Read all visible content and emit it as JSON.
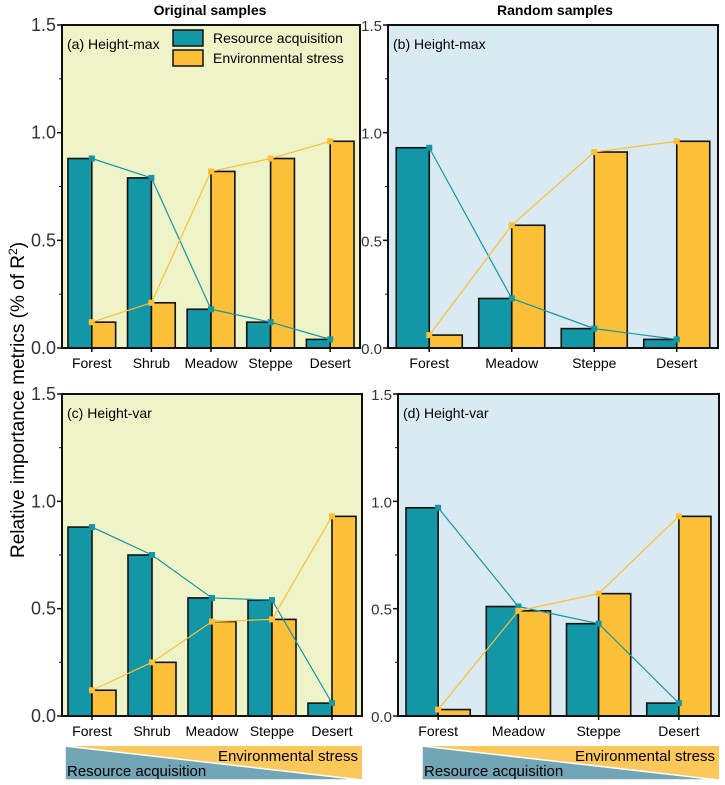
{
  "chart_data": [
    {
      "type": "bar",
      "panel": "a",
      "label": "(a) Height-max",
      "column_title": "Original samples",
      "categories": [
        "Forest",
        "Shrub",
        "Meadow",
        "Steppe",
        "Desert"
      ],
      "series": [
        {
          "name": "Resource acquisition",
          "values": [
            0.88,
            0.79,
            0.18,
            0.12,
            0.04
          ]
        },
        {
          "name": "Environmental stress",
          "values": [
            0.12,
            0.21,
            0.82,
            0.88,
            0.96
          ]
        }
      ],
      "ylim": [
        0,
        1.5
      ],
      "yticks": [
        "0.0",
        "0.5",
        "1.0",
        "1.5"
      ],
      "legend": "top-right"
    },
    {
      "type": "bar",
      "panel": "b",
      "label": "(b) Height-max",
      "column_title": "Random samples",
      "categories": [
        "Forest",
        "Meadow",
        "Steppe",
        "Desert"
      ],
      "series": [
        {
          "name": "Resource acquisition",
          "values": [
            0.93,
            0.23,
            0.09,
            0.04
          ]
        },
        {
          "name": "Environmental stress",
          "values": [
            0.06,
            0.57,
            0.91,
            0.96
          ]
        }
      ],
      "ylim": [
        0,
        1.5
      ],
      "yticks": [
        "0.0",
        "0.5",
        "1.0",
        "1.5"
      ]
    },
    {
      "type": "bar",
      "panel": "c",
      "label": "(c) Height-var",
      "categories": [
        "Forest",
        "Shrub",
        "Meadow",
        "Steppe",
        "Desert"
      ],
      "series": [
        {
          "name": "Resource acquisition",
          "values": [
            0.88,
            0.75,
            0.55,
            0.54,
            0.06
          ]
        },
        {
          "name": "Environmental stress",
          "values": [
            0.12,
            0.25,
            0.44,
            0.45,
            0.93
          ]
        }
      ],
      "ylim": [
        0,
        1.5
      ],
      "yticks": [
        "0.0",
        "0.5",
        "1.0",
        "1.5"
      ]
    },
    {
      "type": "bar",
      "panel": "d",
      "label": "(d) Height-var",
      "categories": [
        "Forest",
        "Meadow",
        "Steppe",
        "Desert"
      ],
      "series": [
        {
          "name": "Resource acquisition",
          "values": [
            0.97,
            0.51,
            0.43,
            0.06
          ]
        },
        {
          "name": "Environmental stress",
          "values": [
            0.03,
            0.49,
            0.57,
            0.93
          ]
        }
      ],
      "ylim": [
        0,
        1.5
      ],
      "yticks": [
        "0.0",
        "0.5",
        "1.0",
        "1.5"
      ]
    }
  ],
  "titles": {
    "original": "Original samples",
    "random": "Random samples"
  },
  "ylabel": "Relative importance metrics (% of R",
  "ylabel_sup": "2",
  "ylabel_end": ")",
  "legend": {
    "resource": "Resource acquisition",
    "stress": "Environmental stress"
  },
  "gradient": {
    "resource": "Resource acquisition",
    "stress": "Environmental stress"
  },
  "colors": {
    "resource": "#1396a5",
    "stress": "#fbc038",
    "bg_original": "#eef4c8",
    "bg_random": "#d9eaf2",
    "grad_resource": "#72a5b5",
    "grad_stress": "#fcc85a"
  }
}
